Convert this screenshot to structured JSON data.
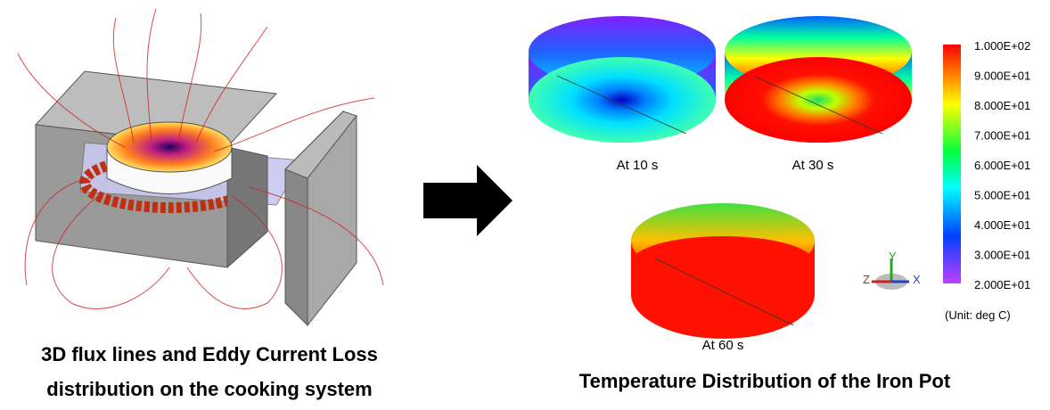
{
  "left_caption": {
    "lines": [
      "3D flux lines and Eddy Current Loss",
      "distribution on the cooking system"
    ]
  },
  "right_caption": "Temperature Distribution of the Iron Pot",
  "pots": [
    {
      "label": "At 10 s"
    },
    {
      "label": "At 30 s"
    },
    {
      "label": "At 60 s"
    }
  ],
  "colorbar": {
    "labels": [
      "1.000E+02",
      "9.000E+01",
      "8.000E+01",
      "7.000E+01",
      "6.000E+01",
      "5.000E+01",
      "4.000E+01",
      "3.000E+01",
      "2.000E+01"
    ],
    "unit": "(Unit: deg C)"
  },
  "axes_triad": {
    "y": "Y",
    "z": "Z",
    "x": "X"
  }
}
